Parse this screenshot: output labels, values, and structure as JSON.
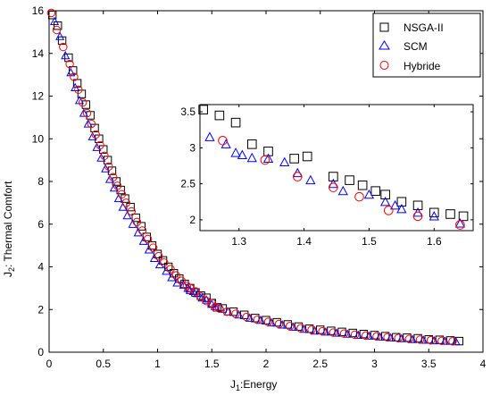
{
  "chart_data": {
    "type": "scatter",
    "xlabel": "J1:Energy",
    "ylabel": "J2: Thermal Comfort",
    "xlim": [
      0,
      4
    ],
    "ylim": [
      0,
      16
    ],
    "xticks": [
      "0",
      "0.5",
      "1",
      "1.5",
      "2",
      "2.5",
      "3",
      "3.5",
      "4"
    ],
    "yticks": [
      "0",
      "2",
      "4",
      "6",
      "8",
      "10",
      "12",
      "14",
      "16"
    ],
    "legend_position": "top-right",
    "series": [
      {
        "name": "NSGA-II",
        "marker": "square",
        "color": "#000000",
        "points": [
          [
            0.03,
            15.8
          ],
          [
            0.08,
            15.3
          ],
          [
            0.12,
            14.6
          ],
          [
            0.18,
            13.8
          ],
          [
            0.22,
            13.2
          ],
          [
            0.26,
            12.6
          ],
          [
            0.3,
            12.1
          ],
          [
            0.34,
            11.6
          ],
          [
            0.38,
            11.1
          ],
          [
            0.42,
            10.5
          ],
          [
            0.46,
            10.0
          ],
          [
            0.5,
            9.5
          ],
          [
            0.54,
            9.0
          ],
          [
            0.58,
            8.5
          ],
          [
            0.62,
            8.0
          ],
          [
            0.66,
            7.6
          ],
          [
            0.7,
            7.2
          ],
          [
            0.75,
            6.8
          ],
          [
            0.8,
            6.3
          ],
          [
            0.85,
            5.9
          ],
          [
            0.9,
            5.4
          ],
          [
            0.95,
            5.0
          ],
          [
            1.0,
            4.6
          ],
          [
            1.05,
            4.3
          ],
          [
            1.1,
            4.0
          ],
          [
            1.15,
            3.7
          ],
          [
            1.2,
            3.45
          ],
          [
            1.25,
            3.2
          ],
          [
            1.3,
            3.0
          ],
          [
            1.35,
            2.8
          ],
          [
            1.4,
            2.65
          ],
          [
            1.45,
            2.55
          ],
          [
            1.5,
            2.3
          ],
          [
            1.55,
            2.1
          ],
          [
            1.6,
            2.05
          ],
          [
            1.7,
            1.9
          ],
          [
            1.8,
            1.75
          ],
          [
            1.9,
            1.6
          ],
          [
            2.0,
            1.5
          ],
          [
            2.1,
            1.4
          ],
          [
            2.2,
            1.3
          ],
          [
            2.3,
            1.2
          ],
          [
            2.4,
            1.1
          ],
          [
            2.5,
            1.05
          ],
          [
            2.6,
            1.0
          ],
          [
            2.7,
            0.95
          ],
          [
            2.8,
            0.9
          ],
          [
            2.9,
            0.85
          ],
          [
            3.0,
            0.8
          ],
          [
            3.1,
            0.75
          ],
          [
            3.2,
            0.7
          ],
          [
            3.3,
            0.68
          ],
          [
            3.4,
            0.65
          ],
          [
            3.5,
            0.6
          ],
          [
            3.6,
            0.58
          ],
          [
            3.7,
            0.55
          ],
          [
            3.78,
            0.52
          ]
        ]
      },
      {
        "name": "SCM",
        "marker": "triangle",
        "color": "#0000ff",
        "points": [
          [
            0.05,
            15.5
          ],
          [
            0.1,
            14.8
          ],
          [
            0.15,
            13.9
          ],
          [
            0.2,
            13.1
          ],
          [
            0.24,
            12.4
          ],
          [
            0.28,
            11.8
          ],
          [
            0.32,
            11.2
          ],
          [
            0.36,
            10.7
          ],
          [
            0.4,
            10.1
          ],
          [
            0.44,
            9.6
          ],
          [
            0.48,
            9.1
          ],
          [
            0.52,
            8.6
          ],
          [
            0.56,
            8.1
          ],
          [
            0.6,
            7.7
          ],
          [
            0.64,
            7.2
          ],
          [
            0.68,
            6.8
          ],
          [
            0.72,
            6.4
          ],
          [
            0.77,
            6.0
          ],
          [
            0.82,
            5.6
          ],
          [
            0.87,
            5.2
          ],
          [
            0.92,
            4.8
          ],
          [
            0.97,
            4.4
          ],
          [
            1.02,
            4.1
          ],
          [
            1.08,
            3.8
          ],
          [
            1.13,
            3.5
          ],
          [
            1.18,
            3.25
          ],
          [
            1.24,
            3.15
          ],
          [
            1.28,
            3.0
          ],
          [
            1.3,
            2.9
          ],
          [
            1.33,
            2.85
          ],
          [
            1.37,
            2.75
          ],
          [
            1.41,
            2.55
          ],
          [
            1.45,
            2.45
          ],
          [
            1.5,
            2.25
          ],
          [
            1.53,
            2.15
          ],
          [
            1.58,
            2.1
          ],
          [
            1.65,
            1.9
          ],
          [
            1.75,
            1.75
          ],
          [
            1.85,
            1.6
          ],
          [
            1.95,
            1.5
          ],
          [
            2.05,
            1.38
          ],
          [
            2.15,
            1.28
          ],
          [
            2.25,
            1.18
          ],
          [
            2.35,
            1.08
          ],
          [
            2.45,
            1.0
          ],
          [
            2.55,
            0.95
          ],
          [
            2.65,
            0.9
          ],
          [
            2.75,
            0.85
          ],
          [
            2.85,
            0.8
          ],
          [
            2.95,
            0.76
          ],
          [
            3.05,
            0.72
          ],
          [
            3.15,
            0.68
          ],
          [
            3.25,
            0.64
          ],
          [
            3.35,
            0.6
          ],
          [
            3.45,
            0.57
          ],
          [
            3.55,
            0.54
          ],
          [
            3.65,
            0.52
          ],
          [
            3.75,
            0.5
          ]
        ]
      },
      {
        "name": "Hybride",
        "marker": "circle",
        "color": "#ff0000",
        "points": [
          [
            0.02,
            15.9
          ],
          [
            0.07,
            15.1
          ],
          [
            0.13,
            14.3
          ],
          [
            0.19,
            13.5
          ],
          [
            0.23,
            12.9
          ],
          [
            0.27,
            12.3
          ],
          [
            0.31,
            11.7
          ],
          [
            0.35,
            11.2
          ],
          [
            0.39,
            10.7
          ],
          [
            0.43,
            10.2
          ],
          [
            0.47,
            9.7
          ],
          [
            0.51,
            9.2
          ],
          [
            0.55,
            8.7
          ],
          [
            0.59,
            8.2
          ],
          [
            0.63,
            7.8
          ],
          [
            0.67,
            7.4
          ],
          [
            0.71,
            7.0
          ],
          [
            0.76,
            6.6
          ],
          [
            0.81,
            6.1
          ],
          [
            0.86,
            5.7
          ],
          [
            0.91,
            5.3
          ],
          [
            0.96,
            4.9
          ],
          [
            1.01,
            4.5
          ],
          [
            1.06,
            4.2
          ],
          [
            1.12,
            3.9
          ],
          [
            1.17,
            3.6
          ],
          [
            1.22,
            3.35
          ],
          [
            1.27,
            3.1
          ],
          [
            1.3,
            3.0
          ],
          [
            1.35,
            2.85
          ],
          [
            1.4,
            2.6
          ],
          [
            1.45,
            2.4
          ],
          [
            1.5,
            2.3
          ],
          [
            1.53,
            2.1
          ],
          [
            1.57,
            2.05
          ],
          [
            1.64,
            1.9
          ],
          [
            1.72,
            1.8
          ],
          [
            1.82,
            1.65
          ],
          [
            1.92,
            1.52
          ],
          [
            2.02,
            1.42
          ],
          [
            2.12,
            1.32
          ],
          [
            2.22,
            1.22
          ],
          [
            2.32,
            1.12
          ],
          [
            2.42,
            1.05
          ],
          [
            2.52,
            0.98
          ],
          [
            2.62,
            0.92
          ],
          [
            2.72,
            0.87
          ],
          [
            2.82,
            0.82
          ],
          [
            2.92,
            0.78
          ],
          [
            3.02,
            0.74
          ],
          [
            3.12,
            0.7
          ],
          [
            3.22,
            0.66
          ],
          [
            3.32,
            0.62
          ],
          [
            3.42,
            0.59
          ],
          [
            3.52,
            0.56
          ],
          [
            3.62,
            0.53
          ],
          [
            3.72,
            0.51
          ]
        ]
      }
    ],
    "inset": {
      "xlim": [
        1.24,
        1.66
      ],
      "ylim": [
        1.85,
        3.6
      ],
      "xticks": [
        "1.3",
        "1.4",
        "1.5",
        "1.6"
      ],
      "yticks": [
        "2",
        "2.5",
        "3",
        "3.5"
      ],
      "series": [
        {
          "name": "NSGA-II",
          "points": [
            [
              1.245,
              3.53
            ],
            [
              1.27,
              3.45
            ],
            [
              1.295,
              3.35
            ],
            [
              1.32,
              3.05
            ],
            [
              1.345,
              2.95
            ],
            [
              1.385,
              2.85
            ],
            [
              1.405,
              2.88
            ],
            [
              1.445,
              2.6
            ],
            [
              1.47,
              2.55
            ],
            [
              1.49,
              2.48
            ],
            [
              1.51,
              2.4
            ],
            [
              1.525,
              2.35
            ],
            [
              1.55,
              2.25
            ],
            [
              1.575,
              2.2
            ],
            [
              1.6,
              2.1
            ],
            [
              1.625,
              2.08
            ],
            [
              1.645,
              2.05
            ]
          ]
        },
        {
          "name": "SCM",
          "points": [
            [
              1.255,
              3.15
            ],
            [
              1.28,
              3.05
            ],
            [
              1.295,
              2.93
            ],
            [
              1.305,
              2.9
            ],
            [
              1.32,
              2.86
            ],
            [
              1.345,
              2.85
            ],
            [
              1.37,
              2.8
            ],
            [
              1.39,
              2.65
            ],
            [
              1.41,
              2.55
            ],
            [
              1.445,
              2.5
            ],
            [
              1.46,
              2.4
            ],
            [
              1.5,
              2.35
            ],
            [
              1.525,
              2.25
            ],
            [
              1.54,
              2.2
            ],
            [
              1.55,
              2.15
            ],
            [
              1.575,
              2.1
            ],
            [
              1.6,
              2.05
            ],
            [
              1.64,
              1.95
            ]
          ]
        },
        {
          "name": "Hybride",
          "points": [
            [
              1.275,
              3.1
            ],
            [
              1.34,
              2.83
            ],
            [
              1.39,
              2.6
            ],
            [
              1.445,
              2.45
            ],
            [
              1.485,
              2.32
            ],
            [
              1.53,
              2.13
            ],
            [
              1.575,
              2.05
            ],
            [
              1.64,
              1.93
            ]
          ]
        }
      ]
    }
  }
}
